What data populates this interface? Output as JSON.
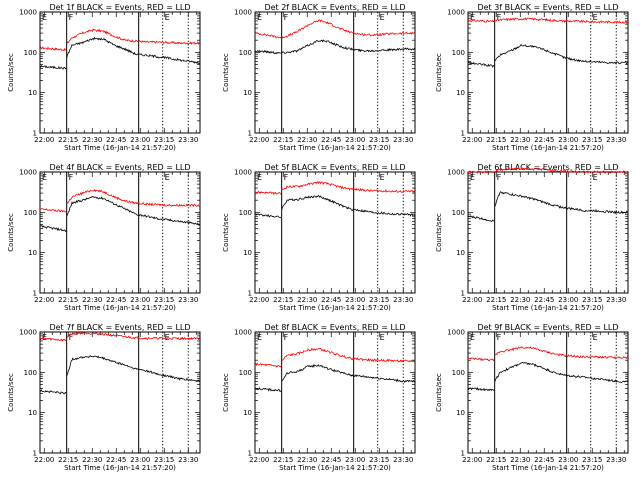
{
  "chart_data": {
    "type": "line",
    "x_axis_label": "Start Time (16-Jan-14 21:57:20)",
    "y_axis_label": "Counts/sec",
    "y_scale": "log",
    "ylim": [
      1,
      1000
    ],
    "y_tick_labels": [
      "1",
      "10",
      "100",
      "1000"
    ],
    "x_range_time": [
      "21:57:20",
      "23:37:20"
    ],
    "x_tick_labels": [
      "22:00",
      "22:15",
      "22:30",
      "22:45",
      "23:00",
      "23:15",
      "23:30"
    ],
    "vertical_markers": [
      {
        "time": "22:14",
        "style": "solid",
        "label": "F"
      },
      {
        "time": "22:59",
        "style": "solid",
        "label": ""
      },
      {
        "time": "23:14",
        "style": "dotted",
        "label": "E"
      },
      {
        "time": "23:30",
        "style": "dotted",
        "label": ""
      }
    ],
    "panels": [
      {
        "title": "Det 1f BLACK = Events, RED = LLD",
        "show_x_labels": true,
        "show_y_label": true,
        "black": [
          45,
          42,
          40,
          150,
          175,
          220,
          210,
          150,
          120,
          90,
          85,
          78,
          72,
          65,
          60,
          55
        ],
        "red": [
          130,
          120,
          115,
          230,
          300,
          360,
          330,
          250,
          200,
          190,
          180,
          180,
          175,
          170,
          170,
          170
        ]
      },
      {
        "title": "Det 2f BLACK = Events, RED = LLD",
        "show_x_labels": true,
        "show_y_label": true,
        "black": [
          110,
          100,
          95,
          100,
          110,
          150,
          200,
          180,
          140,
          120,
          110,
          110,
          115,
          115,
          120,
          120
        ],
        "red": [
          300,
          260,
          230,
          250,
          330,
          480,
          620,
          520,
          380,
          310,
          280,
          270,
          280,
          290,
          295,
          300
        ]
      },
      {
        "title": "Det 3f BLACK = Events, RED = LLD",
        "show_x_labels": true,
        "show_y_label": true,
        "black": [
          55,
          50,
          45,
          85,
          110,
          150,
          140,
          120,
          95,
          75,
          65,
          60,
          58,
          56,
          55,
          55
        ],
        "red": [
          620,
          600,
          580,
          640,
          660,
          680,
          670,
          650,
          620,
          600,
          590,
          580,
          570,
          570,
          560,
          560
        ]
      },
      {
        "title": "Det 4f BLACK = Events, RED = LLD",
        "show_x_labels": true,
        "show_y_label": true,
        "black": [
          45,
          40,
          35,
          170,
          200,
          240,
          220,
          160,
          120,
          90,
          80,
          70,
          65,
          60,
          55,
          50
        ],
        "red": [
          120,
          110,
          105,
          240,
          300,
          360,
          320,
          240,
          190,
          170,
          160,
          155,
          150,
          150,
          150,
          150
        ]
      },
      {
        "title": "Det 5f BLACK = Events, RED = LLD",
        "show_x_labels": true,
        "show_y_label": true,
        "black": [
          90,
          80,
          75,
          200,
          210,
          240,
          250,
          200,
          150,
          120,
          110,
          100,
          95,
          90,
          90,
          85
        ],
        "red": [
          320,
          300,
          290,
          430,
          440,
          500,
          560,
          500,
          420,
          380,
          360,
          340,
          340,
          330,
          330,
          330
        ]
      },
      {
        "title": "Det 6f BLACK = Events, RED = LLD",
        "show_x_labels": true,
        "show_y_label": true,
        "black": [
          80,
          70,
          60,
          320,
          280,
          250,
          220,
          180,
          150,
          130,
          120,
          110,
          110,
          105,
          100,
          100
        ],
        "red": [
          1000,
          1000,
          1000,
          1150,
          1180,
          1200,
          1180,
          1150,
          1100,
          1050,
          1020,
          1000,
          1000,
          1000,
          1000,
          1000
        ]
      },
      {
        "title": "Det 7f BLACK = Events, RED = LLD",
        "show_x_labels": true,
        "show_y_label": true,
        "black": [
          35,
          32,
          30,
          210,
          240,
          250,
          220,
          180,
          150,
          120,
          110,
          90,
          80,
          70,
          65,
          60
        ],
        "red": [
          700,
          650,
          620,
          900,
          950,
          920,
          880,
          820,
          760,
          720,
          700,
          700,
          700,
          690,
          690,
          690
        ]
      },
      {
        "title": "Det 8f BLACK = Events, RED = LLD",
        "show_x_labels": true,
        "show_y_label": true,
        "black": [
          40,
          38,
          35,
          95,
          105,
          140,
          150,
          120,
          100,
          85,
          80,
          75,
          70,
          65,
          60,
          60
        ],
        "red": [
          160,
          150,
          140,
          260,
          290,
          360,
          380,
          320,
          260,
          220,
          210,
          200,
          200,
          195,
          190,
          190
        ]
      },
      {
        "title": "Det 9f BLACK = Events, RED = LLD",
        "show_x_labels": true,
        "show_y_label": true,
        "black": [
          40,
          38,
          36,
          100,
          130,
          170,
          160,
          130,
          100,
          85,
          80,
          75,
          70,
          65,
          60,
          58
        ],
        "red": [
          220,
          210,
          200,
          330,
          360,
          420,
          400,
          340,
          290,
          260,
          250,
          240,
          240,
          235,
          230,
          230
        ]
      }
    ]
  }
}
